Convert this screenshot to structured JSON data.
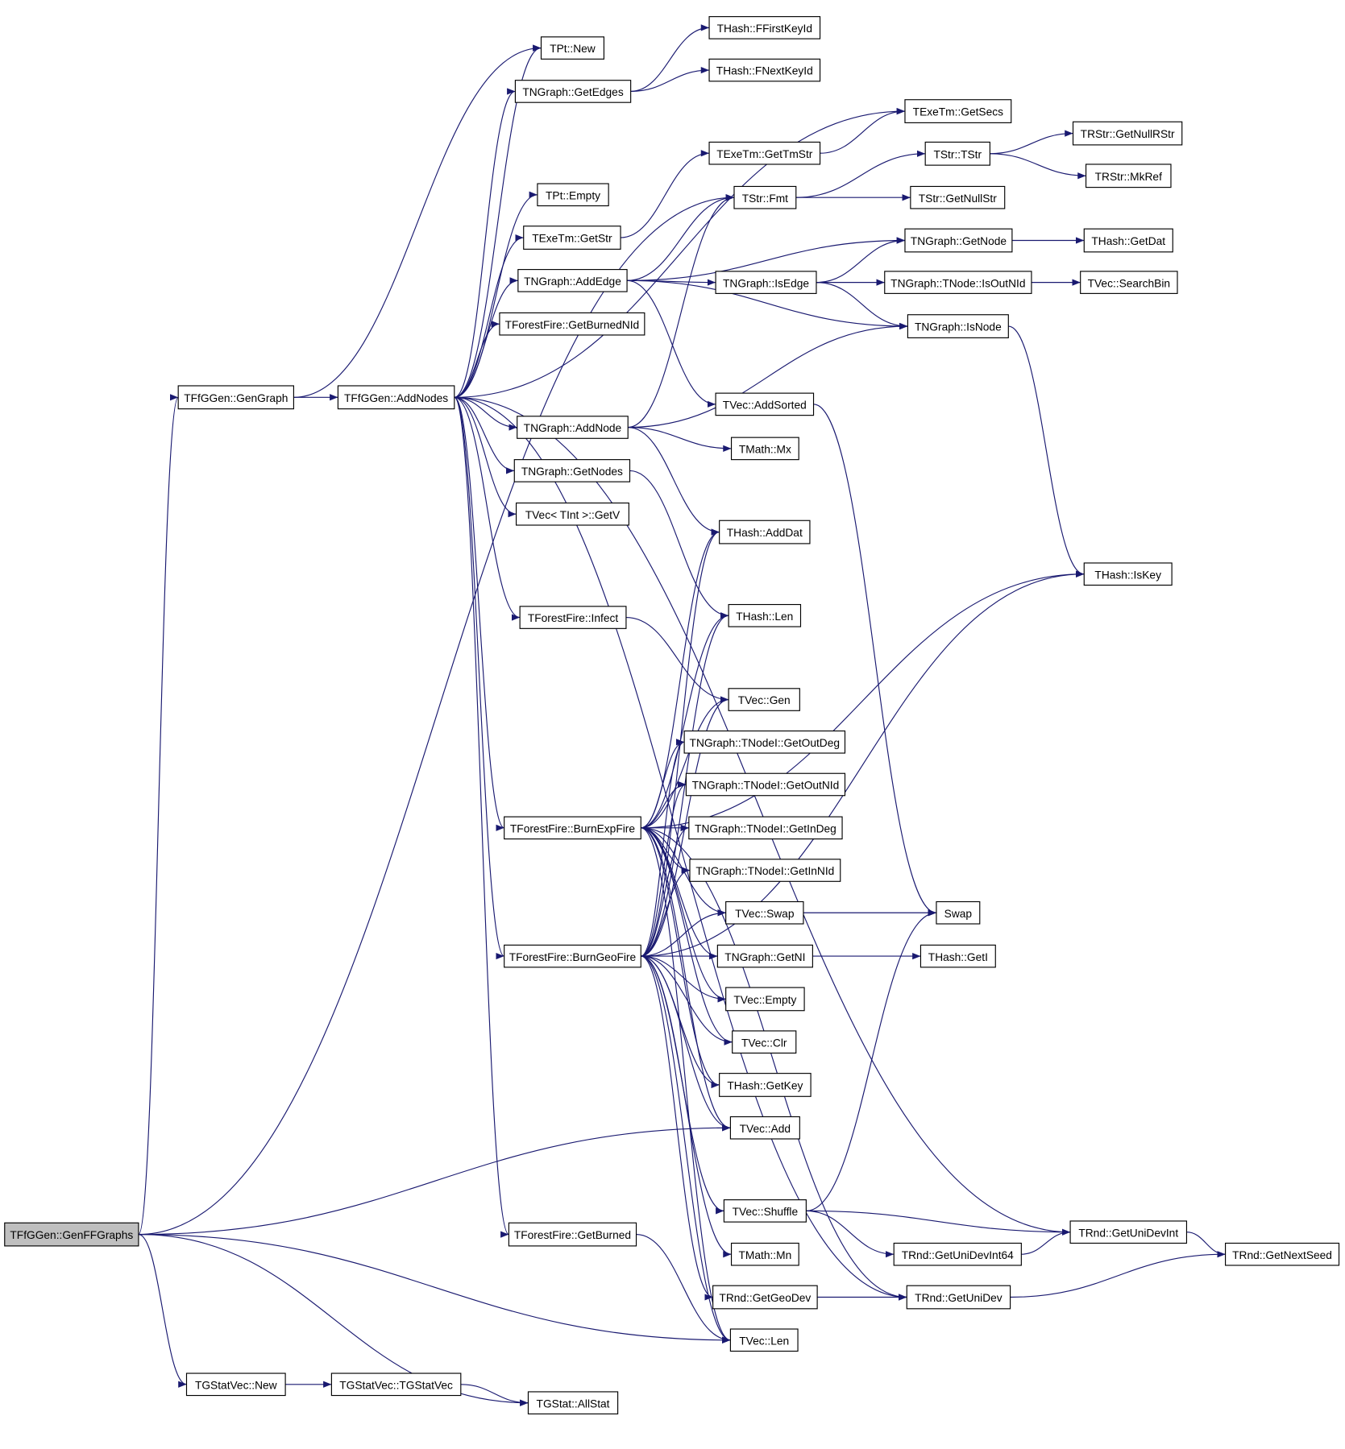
{
  "diagram": {
    "type": "call-graph",
    "edge_color": "#191970",
    "root_fill": "#bfbfbf",
    "nodes": [
      {
        "id": "GenFFGraphs",
        "label": "TFfGGen::GenFFGraphs",
        "root": true
      },
      {
        "id": "GenGraph",
        "label": "TFfGGen::GenGraph"
      },
      {
        "id": "AddNodes",
        "label": "TFfGGen::AddNodes"
      },
      {
        "id": "PtNew",
        "label": "TPt::New"
      },
      {
        "id": "FFirstKeyId",
        "label": "THash::FFirstKeyId"
      },
      {
        "id": "FNextKeyId",
        "label": "THash::FNextKeyId"
      },
      {
        "id": "GetEdges",
        "label": "TNGraph::GetEdges"
      },
      {
        "id": "GetSecs",
        "label": "TExeTm::GetSecs"
      },
      {
        "id": "GetTmStr",
        "label": "TExeTm::GetTmStr"
      },
      {
        "id": "GetNullRStr",
        "label": "TRStr::GetNullRStr"
      },
      {
        "id": "TStrTStr",
        "label": "TStr::TStr"
      },
      {
        "id": "MkRef",
        "label": "TRStr::MkRef"
      },
      {
        "id": "PtEmpty",
        "label": "TPt::Empty"
      },
      {
        "id": "Fmt",
        "label": "TStr::Fmt"
      },
      {
        "id": "GetNullStr",
        "label": "TStr::GetNullStr"
      },
      {
        "id": "ExeGetStr",
        "label": "TExeTm::GetStr"
      },
      {
        "id": "GetNode",
        "label": "TNGraph::GetNode"
      },
      {
        "id": "HashGetDat",
        "label": "THash::GetDat"
      },
      {
        "id": "AddEdge",
        "label": "TNGraph::AddEdge"
      },
      {
        "id": "IsEdge",
        "label": "TNGraph::IsEdge"
      },
      {
        "id": "IsOutNId",
        "label": "TNGraph::TNode::IsOutNId"
      },
      {
        "id": "SearchBin",
        "label": "TVec::SearchBin"
      },
      {
        "id": "IsNode",
        "label": "TNGraph::IsNode"
      },
      {
        "id": "GetBurnedNId",
        "label": "TForestFire::GetBurnedNId"
      },
      {
        "id": "AddSorted",
        "label": "TVec::AddSorted"
      },
      {
        "id": "AddNode",
        "label": "TNGraph::AddNode"
      },
      {
        "id": "Mx",
        "label": "TMath::Mx"
      },
      {
        "id": "GetNodes",
        "label": "TNGraph::GetNodes"
      },
      {
        "id": "GetV",
        "label": "TVec< TInt >::GetV"
      },
      {
        "id": "AddDat",
        "label": "THash::AddDat"
      },
      {
        "id": "IsKey",
        "label": "THash::IsKey"
      },
      {
        "id": "Infect",
        "label": "TForestFire::Infect"
      },
      {
        "id": "HashLen",
        "label": "THash::Len"
      },
      {
        "id": "Gen",
        "label": "TVec::Gen"
      },
      {
        "id": "GetOutDeg",
        "label": "TNGraph::TNodeI::GetOutDeg"
      },
      {
        "id": "GetOutNId",
        "label": "TNGraph::TNodeI::GetOutNId"
      },
      {
        "id": "BurnExpFire",
        "label": "TForestFire::BurnExpFire"
      },
      {
        "id": "GetInDeg",
        "label": "TNGraph::TNodeI::GetInDeg"
      },
      {
        "id": "GetInNId",
        "label": "TNGraph::TNodeI::GetInNId"
      },
      {
        "id": "Swap",
        "label": "Swap"
      },
      {
        "id": "VecSwap",
        "label": "TVec::Swap"
      },
      {
        "id": "BurnGeoFire",
        "label": "TForestFire::BurnGeoFire"
      },
      {
        "id": "GetNI",
        "label": "TNGraph::GetNI"
      },
      {
        "id": "GetI",
        "label": "THash::GetI"
      },
      {
        "id": "VecEmpty",
        "label": "TVec::Empty"
      },
      {
        "id": "Clr",
        "label": "TVec::Clr"
      },
      {
        "id": "GetKey",
        "label": "THash::GetKey"
      },
      {
        "id": "VecAdd",
        "label": "TVec::Add"
      },
      {
        "id": "Shuffle",
        "label": "TVec::Shuffle"
      },
      {
        "id": "GetUniDevInt",
        "label": "TRnd::GetUniDevInt"
      },
      {
        "id": "GetBurned",
        "label": "TForestFire::GetBurned"
      },
      {
        "id": "Mn",
        "label": "TMath::Mn"
      },
      {
        "id": "GetUniDevInt64",
        "label": "TRnd::GetUniDevInt64"
      },
      {
        "id": "GetNextSeed",
        "label": "TRnd::GetNextSeed"
      },
      {
        "id": "GetGeoDev",
        "label": "TRnd::GetGeoDev"
      },
      {
        "id": "GetUniDev",
        "label": "TRnd::GetUniDev"
      },
      {
        "id": "VecLen",
        "label": "TVec::Len"
      },
      {
        "id": "GStatVecNew",
        "label": "TGStatVec::New"
      },
      {
        "id": "TGStatVec",
        "label": "TGStatVec::TGStatVec"
      },
      {
        "id": "AllStat",
        "label": "TGStat::AllStat"
      }
    ],
    "edges": [
      [
        "GenFFGraphs",
        "GenGraph"
      ],
      [
        "GenFFGraphs",
        "Fmt"
      ],
      [
        "GenFFGraphs",
        "VecAdd"
      ],
      [
        "GenFFGraphs",
        "VecLen"
      ],
      [
        "GenFFGraphs",
        "GStatVecNew"
      ],
      [
        "GenFFGraphs",
        "AllStat"
      ],
      [
        "GenGraph",
        "AddNodes"
      ],
      [
        "GenGraph",
        "PtNew"
      ],
      [
        "AddNodes",
        "PtNew"
      ],
      [
        "AddNodes",
        "GetEdges"
      ],
      [
        "AddNodes",
        "GetSecs"
      ],
      [
        "AddNodes",
        "PtEmpty"
      ],
      [
        "AddNodes",
        "ExeGetStr"
      ],
      [
        "AddNodes",
        "AddEdge"
      ],
      [
        "AddNodes",
        "GetBurnedNId"
      ],
      [
        "AddNodes",
        "GetUniDevInt"
      ],
      [
        "AddNodes",
        "AddNode"
      ],
      [
        "AddNodes",
        "GetNodes"
      ],
      [
        "AddNodes",
        "GetV"
      ],
      [
        "AddNodes",
        "Infect"
      ],
      [
        "AddNodes",
        "BurnExpFire"
      ],
      [
        "AddNodes",
        "BurnGeoFire"
      ],
      [
        "AddNodes",
        "GetBurned"
      ],
      [
        "AddNodes",
        "GetUniDev"
      ],
      [
        "GetEdges",
        "FFirstKeyId"
      ],
      [
        "GetEdges",
        "FNextKeyId"
      ],
      [
        "GetTmStr",
        "GetSecs"
      ],
      [
        "Fmt",
        "TStrTStr"
      ],
      [
        "Fmt",
        "GetNullStr"
      ],
      [
        "TStrTStr",
        "GetNullRStr"
      ],
      [
        "TStrTStr",
        "MkRef"
      ],
      [
        "ExeGetStr",
        "GetTmStr"
      ],
      [
        "AddEdge",
        "Fmt"
      ],
      [
        "AddEdge",
        "GetNode"
      ],
      [
        "AddEdge",
        "IsEdge"
      ],
      [
        "AddEdge",
        "IsNode"
      ],
      [
        "AddEdge",
        "AddSorted"
      ],
      [
        "GetNode",
        "HashGetDat"
      ],
      [
        "IsEdge",
        "GetNode"
      ],
      [
        "IsEdge",
        "IsOutNId"
      ],
      [
        "IsEdge",
        "IsNode"
      ],
      [
        "IsOutNId",
        "SearchBin"
      ],
      [
        "IsNode",
        "IsKey"
      ],
      [
        "AddSorted",
        "Swap"
      ],
      [
        "AddNode",
        "Fmt"
      ],
      [
        "AddNode",
        "Mx"
      ],
      [
        "AddNode",
        "IsNode"
      ],
      [
        "AddNode",
        "AddDat"
      ],
      [
        "GetNodes",
        "HashLen"
      ],
      [
        "Infect",
        "Gen"
      ],
      [
        "BurnExpFire",
        "AddDat"
      ],
      [
        "BurnExpFire",
        "IsKey"
      ],
      [
        "BurnExpFire",
        "HashLen"
      ],
      [
        "BurnExpFire",
        "Gen"
      ],
      [
        "BurnExpFire",
        "GetOutDeg"
      ],
      [
        "BurnExpFire",
        "GetOutNId"
      ],
      [
        "BurnExpFire",
        "GetInDeg"
      ],
      [
        "BurnExpFire",
        "GetInNId"
      ],
      [
        "BurnExpFire",
        "VecSwap"
      ],
      [
        "BurnExpFire",
        "GetNI"
      ],
      [
        "BurnExpFire",
        "VecEmpty"
      ],
      [
        "BurnExpFire",
        "Clr"
      ],
      [
        "BurnExpFire",
        "GetKey"
      ],
      [
        "BurnExpFire",
        "VecAdd"
      ],
      [
        "BurnExpFire",
        "VecLen"
      ],
      [
        "BurnExpFire",
        "GetUniDev"
      ],
      [
        "BurnGeoFire",
        "AddDat"
      ],
      [
        "BurnGeoFire",
        "HashLen"
      ],
      [
        "BurnGeoFire",
        "Gen"
      ],
      [
        "BurnGeoFire",
        "GetOutDeg"
      ],
      [
        "BurnGeoFire",
        "GetOutNId"
      ],
      [
        "BurnGeoFire",
        "GetInDeg"
      ],
      [
        "BurnGeoFire",
        "GetInNId"
      ],
      [
        "BurnGeoFire",
        "VecSwap"
      ],
      [
        "BurnGeoFire",
        "GetNI"
      ],
      [
        "BurnGeoFire",
        "VecEmpty"
      ],
      [
        "BurnGeoFire",
        "Clr"
      ],
      [
        "BurnGeoFire",
        "GetKey"
      ],
      [
        "BurnGeoFire",
        "VecAdd"
      ],
      [
        "BurnGeoFire",
        "Shuffle"
      ],
      [
        "BurnGeoFire",
        "IsKey"
      ],
      [
        "BurnGeoFire",
        "Mn"
      ],
      [
        "BurnGeoFire",
        "GetGeoDev"
      ],
      [
        "BurnGeoFire",
        "VecLen"
      ],
      [
        "VecSwap",
        "Swap"
      ],
      [
        "GetNI",
        "GetI"
      ],
      [
        "Shuffle",
        "Swap"
      ],
      [
        "Shuffle",
        "GetUniDevInt"
      ],
      [
        "Shuffle",
        "GetUniDevInt64"
      ],
      [
        "GetUniDevInt64",
        "GetUniDevInt"
      ],
      [
        "GetUniDevInt",
        "GetNextSeed"
      ],
      [
        "GetGeoDev",
        "GetUniDev"
      ],
      [
        "GetUniDev",
        "GetNextSeed"
      ],
      [
        "GetBurned",
        "VecLen"
      ],
      [
        "GStatVecNew",
        "TGStatVec"
      ],
      [
        "TGStatVec",
        "AllStat"
      ]
    ]
  }
}
